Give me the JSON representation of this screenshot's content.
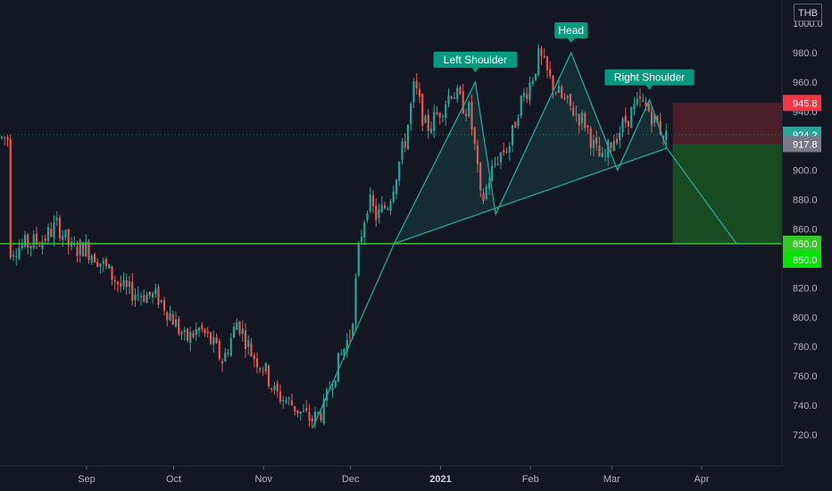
{
  "currency_label": "THB",
  "colors": {
    "background": "#131722",
    "up_candle": "#26a69a",
    "down_candle": "#ef5350",
    "pattern_line": "#26a69a",
    "pattern_fill": "rgba(38,166,154,0.15)",
    "support_line": "#34c924",
    "stop_zone": "rgba(242,54,69,0.25)",
    "target_zone": "rgba(34,139,34,0.45)"
  },
  "chart_data": {
    "type": "candlestick",
    "y_axis": {
      "min": 710,
      "max": 1000,
      "ticks": [
        720,
        740,
        760,
        780,
        800,
        820,
        840,
        860,
        880,
        900,
        920,
        940,
        960,
        980,
        1000
      ],
      "side": "right"
    },
    "x_axis": {
      "labels": [
        {
          "text": "Sep",
          "date": "2020-09-01",
          "bold": false
        },
        {
          "text": "Oct",
          "date": "2020-10-01",
          "bold": false
        },
        {
          "text": "Nov",
          "date": "2020-11-01",
          "bold": false
        },
        {
          "text": "Dec",
          "date": "2020-12-01",
          "bold": false
        },
        {
          "text": "2021",
          "date": "2021-01-01",
          "bold": true
        },
        {
          "text": "Feb",
          "date": "2021-02-01",
          "bold": false
        },
        {
          "text": "Mar",
          "date": "2021-03-01",
          "bold": false
        },
        {
          "text": "Apr",
          "date": "2021-04-01",
          "bold": false
        }
      ]
    },
    "grid": false,
    "price_path": [
      [
        "2020-08-05",
        846
      ],
      [
        "2020-08-12",
        850
      ],
      [
        "2020-08-17",
        853
      ],
      [
        "2020-08-22",
        863
      ],
      [
        "2020-08-27",
        845
      ],
      [
        "2020-08-31",
        848
      ],
      [
        "2020-09-04",
        842
      ],
      [
        "2020-09-09",
        830
      ],
      [
        "2020-09-14",
        818
      ],
      [
        "2020-09-20",
        816
      ],
      [
        "2020-09-26",
        813
      ],
      [
        "2020-10-01",
        798
      ],
      [
        "2020-10-05",
        784
      ],
      [
        "2020-10-10",
        792
      ],
      [
        "2020-10-14",
        783
      ],
      [
        "2020-10-18",
        770
      ],
      [
        "2020-10-23",
        798
      ],
      [
        "2020-10-28",
        775
      ],
      [
        "2020-11-01",
        766
      ],
      [
        "2020-11-05",
        748
      ],
      [
        "2020-11-10",
        742
      ],
      [
        "2020-11-15",
        733
      ],
      [
        "2020-11-18",
        730
      ],
      [
        "2020-11-22",
        738
      ],
      [
        "2020-11-24",
        755
      ],
      [
        "2020-11-27",
        770
      ],
      [
        "2020-12-01",
        790
      ],
      [
        "2020-12-02",
        806
      ],
      [
        "2020-12-04",
        850
      ],
      [
        "2020-12-07",
        880
      ],
      [
        "2020-12-10",
        868
      ],
      [
        "2020-12-14",
        878
      ],
      [
        "2020-12-17",
        900
      ],
      [
        "2020-12-20",
        922
      ],
      [
        "2020-12-23",
        958
      ],
      [
        "2020-12-27",
        928
      ],
      [
        "2020-12-31",
        938
      ],
      [
        "2021-01-05",
        955
      ],
      [
        "2021-01-08",
        946
      ],
      [
        "2021-01-11",
        940
      ],
      [
        "2021-01-13",
        912
      ],
      [
        "2021-01-15",
        876
      ],
      [
        "2021-01-18",
        896
      ],
      [
        "2021-01-21",
        910
      ],
      [
        "2021-01-25",
        918
      ],
      [
        "2021-01-28",
        944
      ],
      [
        "2021-02-01",
        960
      ],
      [
        "2021-02-04",
        978
      ],
      [
        "2021-02-08",
        960
      ],
      [
        "2021-02-12",
        948
      ],
      [
        "2021-02-16",
        940
      ],
      [
        "2021-02-20",
        932
      ],
      [
        "2021-02-23",
        915
      ],
      [
        "2021-02-26",
        905
      ],
      [
        "2021-03-01",
        920
      ],
      [
        "2021-03-04",
        928
      ],
      [
        "2021-03-08",
        940
      ],
      [
        "2021-03-11",
        946
      ],
      [
        "2021-03-14",
        940
      ],
      [
        "2021-03-17",
        930
      ],
      [
        "2021-03-20",
        922
      ]
    ],
    "pattern": {
      "labels": [
        "Left Shoulder",
        "Head",
        "Right Shoulder"
      ],
      "points": [
        [
          "2020-11-18",
          725
        ],
        [
          "2020-12-16",
          850
        ],
        [
          "2021-01-13",
          960
        ],
        [
          "2021-01-20",
          870
        ],
        [
          "2021-02-15",
          980
        ],
        [
          "2021-03-03",
          900
        ],
        [
          "2021-03-14",
          948
        ],
        [
          "2021-03-20",
          915
        ],
        [
          "2021-04-13",
          850
        ]
      ],
      "neckline": [
        [
          "2020-12-16",
          850
        ],
        [
          "2021-03-20",
          915
        ]
      ]
    },
    "trade": {
      "stop": 945.8,
      "entry": 917.8,
      "target": 850.0,
      "zone_start": "2021-03-22",
      "zone_end": "2021-05-06"
    },
    "horizontal_level": 850.0,
    "last_price": 924.2,
    "price_tags": [
      {
        "value": 945.8,
        "text": "945.8",
        "color": "#f23645"
      },
      {
        "value": 924.2,
        "text": "924.2",
        "color": "#26a69a"
      },
      {
        "value": 917.8,
        "text": "917.8",
        "color": "#787b86"
      },
      {
        "value": 850.0,
        "text": "850.0",
        "color": "#34c924",
        "offset": 0
      },
      {
        "value": 850.0,
        "text": "850.0",
        "color": "#00e600",
        "offset": 1
      }
    ]
  }
}
